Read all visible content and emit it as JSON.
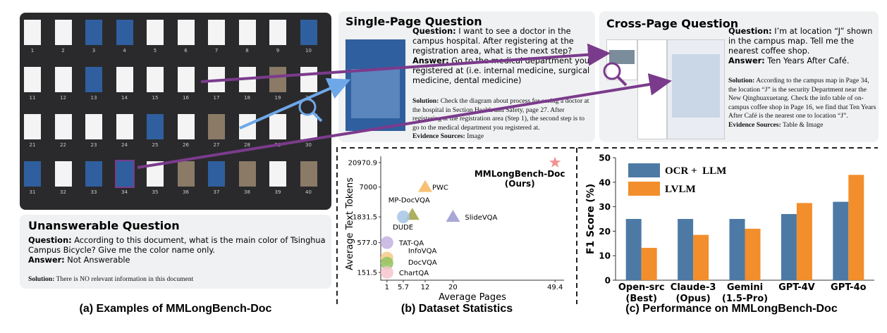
{
  "panel_a": {
    "caption": "(a) Examples of MMLongBench-Doc",
    "page_numbers": [
      1,
      2,
      3,
      4,
      5,
      6,
      7,
      8,
      9,
      10,
      11,
      12,
      13,
      14,
      15,
      16,
      17,
      18,
      19,
      20,
      21,
      22,
      23,
      24,
      25,
      26,
      27,
      28,
      29,
      30,
      31,
      32,
      33,
      34,
      35,
      36,
      37,
      38,
      39,
      40
    ]
  },
  "unanswerable": {
    "title": "Unanswerable Question",
    "question_label": "Question:",
    "question": "According to this document, what is the main color of Tsinghua Campus Bicycle? Give me the color name only.",
    "answer_label": "Answer:",
    "answer": "Not Answerable",
    "solution_label": "Solution:",
    "solution": "There is NO relevant information in this document"
  },
  "single_page": {
    "title": "Single-Page Question",
    "question_label": "Question:",
    "question": "I want to see a doctor in the campus hospital. After registering at the registration area, what is the next step?",
    "answer_label": "Answer:",
    "answer": "Go to the medical department you registered at (i.e. internal medicine, surgical medicine, dental medicine)",
    "solution_label": "Solution:",
    "solution": "Check the diagram about process for seeing a doctor at the hospital in Section Health and Safety, page 27. After registering at the registration area (Step 1), the second step is to go to the medical department you registered at.",
    "evidence_label": "Evidence Sources:",
    "evidence": "Image"
  },
  "cross_page": {
    "title": "Cross-Page Question",
    "question_label": "Question:",
    "question": "I’m at location “J” shown in the campus map. Tell me the nearest coffee shop.",
    "answer_label": "Answer:",
    "answer": "Ten Years After Café.",
    "solution_label": "Solution:",
    "solution": "According to the campus map in Page 34, the location “J” is the security Department near the New Qinghuaxuetang. Check the info table of on-campus coffee shop in Page 16, we find that Ten Years After Café is the nearest one to location “J”.",
    "evidence_label": "Evidence Sources:",
    "evidence": "Table & Image"
  },
  "chart_data": [
    {
      "type": "scatter",
      "title": "(b) Dataset Statistics",
      "x_label": "Average Pages",
      "y_label": "Average Text Tokens",
      "log_y": true,
      "xlim": [
        -0.8,
        52
      ],
      "ylim": [
        107,
        27800
      ],
      "xticks": [
        1,
        5.7,
        12,
        20,
        49.4
      ],
      "yticks": [
        {
          "value": 151.5,
          "label": "151.5"
        },
        {
          "value": 577,
          "label": "577.0"
        },
        1831.5,
        7000,
        20970.9
      ],
      "series": [
        {
          "name": "MMLongBench-Doc\n(Ours)",
          "color": "#f07f7f",
          "marker": "star",
          "x": [
            49.4
          ],
          "values": [
            20970.9
          ]
        },
        {
          "name": "PWC",
          "color": "#f5b65a",
          "marker": "triangle",
          "x": [
            12
          ],
          "values": [
            7000
          ]
        },
        {
          "name": "MP-DocVQA",
          "color": "#9ea13f",
          "marker": "triangle",
          "x": [
            8.3
          ],
          "values": [
            2000
          ]
        },
        {
          "name": "DUDE",
          "color": "#a7c5e6",
          "marker": "circle",
          "x": [
            5.7
          ],
          "values": [
            1831.5
          ]
        },
        {
          "name": "SlideVQA",
          "color": "#9a98d0",
          "marker": "triangle",
          "x": [
            20
          ],
          "values": [
            1831.5
          ]
        },
        {
          "name": "TAT-QA",
          "color": "#c4b2df",
          "marker": "circle",
          "x": [
            1
          ],
          "values": [
            577
          ]
        },
        {
          "name": "InfoVQA",
          "color": "#f6c98a",
          "marker": "circle",
          "x": [
            1
          ],
          "values": [
            290
          ]
        },
        {
          "name": "DocVQA",
          "color": "#8fc45e",
          "marker": "circle",
          "x": [
            1
          ],
          "values": [
            230
          ]
        },
        {
          "name": "ChartQA",
          "color": "#f7c4cd",
          "marker": "circle",
          "x": [
            1
          ],
          "values": [
            151.5
          ]
        }
      ]
    },
    {
      "type": "bar",
      "title": "(c) Performance on MMLongBench-Doc",
      "y_label": "F1 Score (%)",
      "categories": [
        "Open-src\n(Best)",
        "Claude-3\n(Opus)",
        "Gemini\n(1.5-Pro)",
        "GPT-4V",
        "GPT-4o"
      ],
      "ylim": [
        0,
        50
      ],
      "yticks": [
        0,
        10,
        20,
        30,
        40,
        50
      ],
      "grid": false,
      "legend": "top-left",
      "series": [
        {
          "name": "OCR +  LLM",
          "color": "#4d7aa5",
          "values": [
            25,
            25,
            25,
            27,
            32
          ]
        },
        {
          "name": "LVLM",
          "color": "#f28e2b",
          "values": [
            13.2,
            18.5,
            21,
            31.5,
            43
          ]
        }
      ]
    }
  ]
}
